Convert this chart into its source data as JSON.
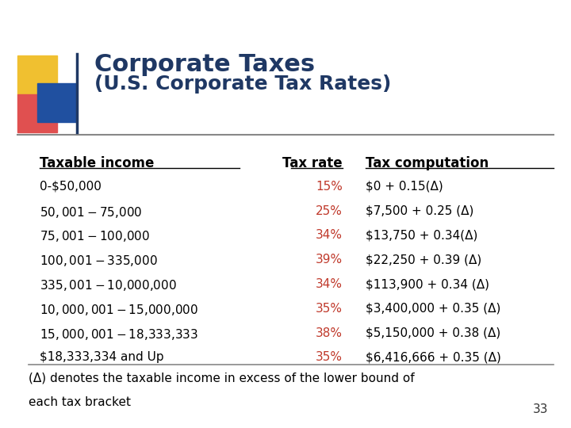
{
  "title_line1": "Corporate Taxes",
  "title_line2": "(U.S. Corporate Tax Rates)",
  "title_color": "#1F3864",
  "bg_color": "#FFFFFF",
  "header_col1": "Taxable income",
  "header_col2": "Tax rate",
  "header_col3": "Tax computation",
  "header_color": "#000000",
  "rows": [
    [
      "0-$50,000",
      "15%",
      "$0 + 0.15(Δ)"
    ],
    [
      "$50,001-$75,000",
      "25%",
      "$7,500 + 0.25 (Δ)"
    ],
    [
      "$75,001-$100,000",
      "34%",
      "$13,750 + 0.34(Δ)"
    ],
    [
      "$100,001-$335,000",
      "39%",
      "$22,250 + 0.39 (Δ)"
    ],
    [
      "$335,001-$10,000,000",
      "34%",
      "$113,900 + 0.34 (Δ)"
    ],
    [
      "$10,000,001-$15,000,000",
      "35%",
      "$3,400,000 + 0.35 (Δ)"
    ],
    [
      "$15,000,001-$18,333,333",
      "38%",
      "$5,150,000 + 0.38 (Δ)"
    ],
    [
      "$18,333,334 and Up",
      "35%",
      "$6,416,666 + 0.35 (Δ)"
    ]
  ],
  "col1_color": "#000000",
  "col2_color": "#C0392B",
  "col3_color": "#000000",
  "footnote_line1": "(Δ) denotes the taxable income in excess of the lower bound of",
  "footnote_line2": "each tax bracket",
  "footnote_color": "#000000",
  "page_number": "33",
  "decoration_yellow": "#F0C030",
  "decoration_red": "#E05050",
  "decoration_blue": "#2050A0"
}
